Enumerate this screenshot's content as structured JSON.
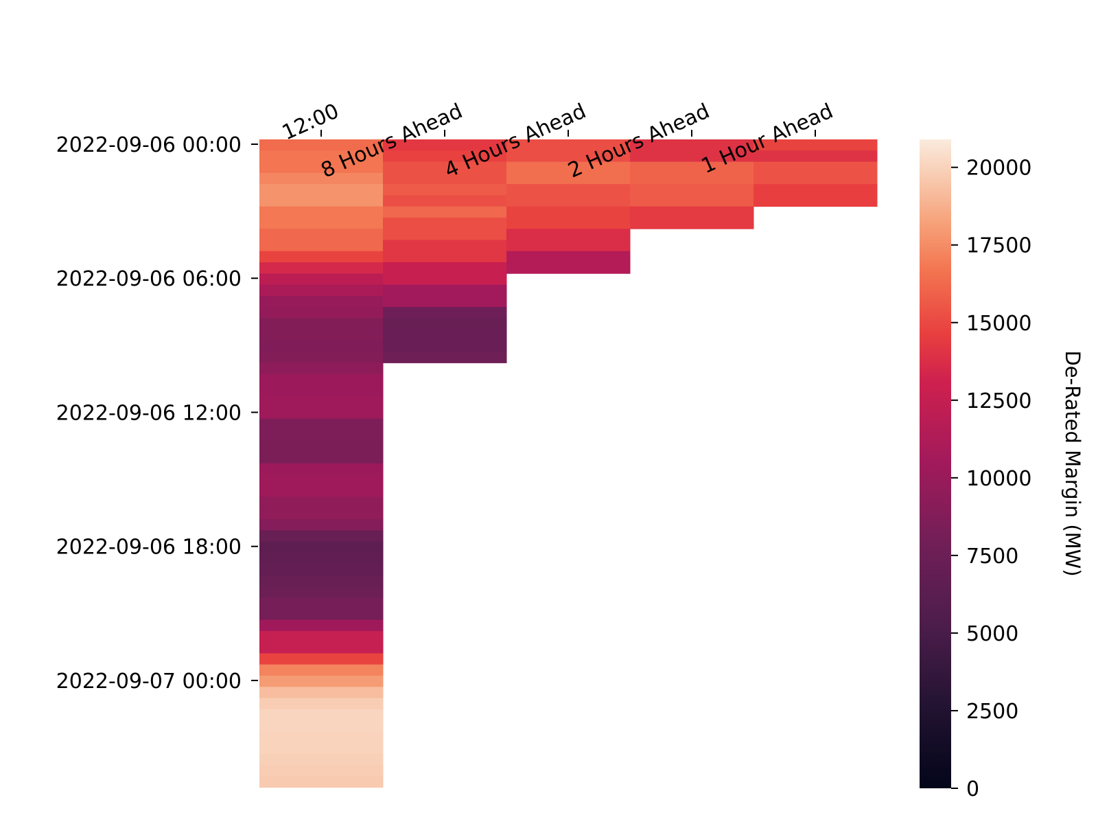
{
  "chart_data": {
    "type": "heatmap",
    "title": "",
    "xlabel": "",
    "ylabel": "",
    "x_categories": [
      "12:00",
      "8 Hours Ahead",
      "4 Hours Ahead",
      "2 Hours Ahead",
      "1 Hour Ahead"
    ],
    "y_start": "2022-09-06 00:00",
    "y_step_minutes": 30,
    "y_tick_labels": [
      "2022-09-06 00:00",
      "2022-09-06 06:00",
      "2022-09-06 12:00",
      "2022-09-06 18:00",
      "2022-09-07 00:00"
    ],
    "y_tick_rows": [
      0,
      12,
      24,
      36,
      48
    ],
    "colorbar": {
      "label": "De-Rated Margin (MW)",
      "min": 0,
      "max": 20900,
      "ticks": [
        0,
        2500,
        5000,
        7500,
        10000,
        12500,
        15000,
        17500,
        20000
      ],
      "colormap": "rocket"
    },
    "series": [
      {
        "name": "12:00",
        "values": [
          16300,
          16700,
          16700,
          17300,
          17700,
          17700,
          16800,
          16800,
          16200,
          16200,
          14800,
          13500,
          12000,
          11000,
          9900,
          9700,
          8800,
          8800,
          8700,
          8800,
          9500,
          10200,
          10200,
          10300,
          10300,
          8600,
          8600,
          8400,
          8400,
          10200,
          10300,
          10300,
          9600,
          9600,
          8900,
          7200,
          6500,
          6700,
          6900,
          7200,
          7500,
          8100,
          8100,
          10400,
          12600,
          12600,
          14800,
          17200,
          18000,
          19200,
          19800,
          20100,
          20100,
          20000,
          20000,
          19900,
          19800,
          19700
        ]
      },
      {
        "name": "8 Hours Ahead",
        "values": [
          14300,
          14700,
          15300,
          15300,
          15700,
          15200,
          16200,
          15200,
          15200,
          14200,
          14200,
          12700,
          12700,
          10500,
          10500,
          7800,
          7200,
          7300,
          7300,
          7700
        ]
      },
      {
        "name": "4 Hours Ahead",
        "values": [
          15200,
          15200,
          16400,
          16400,
          15400,
          15400,
          14800,
          14800,
          13700,
          13700,
          11500,
          11500
        ]
      },
      {
        "name": "2 Hours Ahead",
        "values": [
          14000,
          14000,
          16000,
          16000,
          15700,
          15700,
          14400,
          14400
        ]
      },
      {
        "name": "1 Hour Ahead",
        "values": [
          14800,
          14000,
          15400,
          15400,
          14600,
          14600
        ]
      }
    ]
  }
}
